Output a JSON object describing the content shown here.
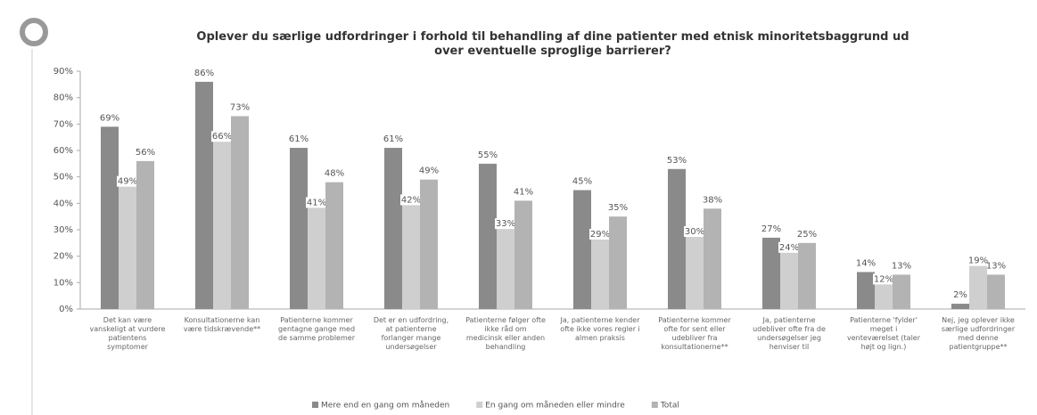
{
  "chart_data": {
    "type": "bar",
    "title": "Oplever du særlige udfordringer i forhold til behandling af dine patienter med etnisk minoritetsbaggrund ud over eventuelle sproglige barrierer?",
    "categories": [
      "Det kan være vanskeligt at vurdere patientens symptomer",
      "Konsultationerne kan være tidskrævende**",
      "Patienterne kommer gentagne gange med de samme problemer",
      "Det er en udfordring, at patienterne forlanger mange undersøgelser",
      "Patienterne følger ofte ikke råd om medicinsk eller anden behandling",
      "Ja, patienterne kender ofte ikke vores regler i almen praksis",
      "Patienterne kommer ofte for sent eller udebliver fra konsultationerne**",
      "Ja, patienterne udebliver ofte fra de undersøgelser jeg henviser til",
      "Patienterne 'fylder' meget i venteværelset (taler højt og lign.)",
      "Nej, jeg oplever ikke særlige udfordringer med denne patientgruppe**"
    ],
    "series": [
      {
        "name": "Mere end en gang om måneden",
        "color": "#8a8a8a",
        "values": [
          69,
          86,
          61,
          61,
          55,
          45,
          53,
          27,
          14,
          2
        ],
        "value_labels": [
          "69%",
          "86%",
          "61%",
          "61%",
          "55%",
          "45%",
          "53%",
          "27%",
          "14%",
          "2%"
        ]
      },
      {
        "name": "En gang om måneden eller mindre",
        "color": "#cfcfcf",
        "values": [
          49,
          66,
          41,
          42,
          33,
          29,
          30,
          24,
          12,
          19
        ],
        "value_labels": [
          "49%",
          "66%",
          "41%",
          "42%",
          "33%",
          "29%",
          "30%",
          "24%",
          "12%",
          "19%"
        ]
      },
      {
        "name": "Total",
        "color": "#b3b3b3",
        "values": [
          56,
          73,
          48,
          49,
          41,
          35,
          38,
          25,
          13,
          13
        ],
        "value_labels": [
          "56%",
          "73%",
          "48%",
          "49%",
          "41%",
          "35%",
          "38%",
          "25%",
          "13%",
          "13%"
        ]
      }
    ],
    "ylim": [
      0,
      90
    ],
    "yticks": [
      {
        "value": 0,
        "label": "0%"
      },
      {
        "value": 10,
        "label": "10%"
      },
      {
        "value": 20,
        "label": "20%"
      },
      {
        "value": 30,
        "label": "30%"
      },
      {
        "value": 40,
        "label": "40%"
      },
      {
        "value": 50,
        "label": "50%"
      },
      {
        "value": 60,
        "label": "60%"
      },
      {
        "value": 70,
        "label": "70%"
      },
      {
        "value": 80,
        "label": "80%"
      },
      {
        "value": 90,
        "label": "90%"
      }
    ],
    "legend": "bottom"
  }
}
